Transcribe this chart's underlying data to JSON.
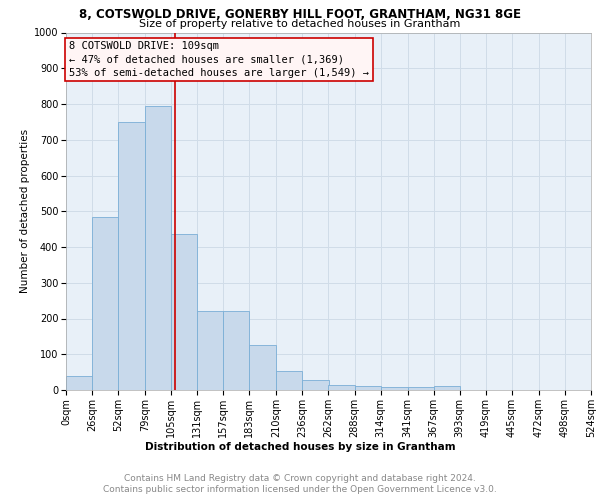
{
  "title1": "8, COTSWOLD DRIVE, GONERBY HILL FOOT, GRANTHAM, NG31 8GE",
  "title2": "Size of property relative to detached houses in Grantham",
  "xlabel": "Distribution of detached houses by size in Grantham",
  "ylabel": "Number of detached properties",
  "bar_color": "#c8d9eb",
  "bar_edge_color": "#7aaed6",
  "bin_edges": [
    0,
    26,
    52,
    79,
    105,
    131,
    157,
    183,
    210,
    236,
    262,
    288,
    314,
    341,
    367,
    393,
    419,
    445,
    472,
    498,
    524
  ],
  "bar_heights": [
    40,
    485,
    750,
    795,
    435,
    220,
    220,
    125,
    52,
    27,
    13,
    10,
    8,
    8,
    10,
    0,
    0,
    0,
    0,
    0
  ],
  "xlabels": [
    "0sqm",
    "26sqm",
    "52sqm",
    "79sqm",
    "105sqm",
    "131sqm",
    "157sqm",
    "183sqm",
    "210sqm",
    "236sqm",
    "262sqm",
    "288sqm",
    "314sqm",
    "341sqm",
    "367sqm",
    "393sqm",
    "419sqm",
    "445sqm",
    "472sqm",
    "498sqm",
    "524sqm"
  ],
  "property_size": 109,
  "red_line_color": "#cc0000",
  "annotation_line1": "8 COTSWOLD DRIVE: 109sqm",
  "annotation_line2": "← 47% of detached houses are smaller (1,369)",
  "annotation_line3": "53% of semi-detached houses are larger (1,549) →",
  "annotation_box_facecolor": "#fff5f5",
  "annotation_border_color": "#cc0000",
  "ylim": [
    0,
    1000
  ],
  "grid_color": "#d0dce8",
  "background_color": "#e8f0f8",
  "footer1": "Contains HM Land Registry data © Crown copyright and database right 2024.",
  "footer2": "Contains public sector information licensed under the Open Government Licence v3.0.",
  "title1_fontsize": 8.5,
  "title2_fontsize": 8,
  "xlabel_fontsize": 7.5,
  "ylabel_fontsize": 7.5,
  "tick_fontsize": 7,
  "annotation_fontsize": 7.5,
  "footer_fontsize": 6.5
}
